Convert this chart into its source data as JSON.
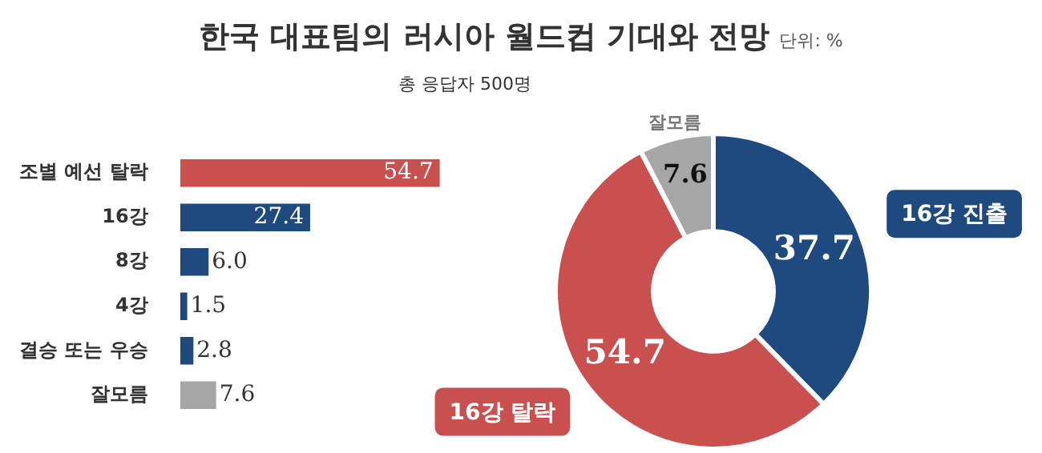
{
  "chart_data": [
    {
      "type": "bar",
      "orientation": "horizontal",
      "title": "한국 대표팀의 러시아 월드컵 기대와 전망",
      "subtitle": "총 응답자 500명",
      "annotations": [
        "단위: %"
      ],
      "categories": [
        "조별 예선 탈락",
        "16강",
        "8강",
        "4강",
        "결승 또는 우승",
        "잘모름"
      ],
      "values": [
        54.7,
        27.4,
        6.0,
        1.5,
        2.8,
        7.6
      ],
      "colors": [
        "#c9504f",
        "#1f4a7f",
        "#1f4a7f",
        "#1f4a7f",
        "#1f4a7f",
        "#a6a6a6"
      ],
      "value_labels": [
        "54.7",
        "27.4",
        "6.0",
        "1.5",
        "2.8",
        "7.6"
      ]
    },
    {
      "type": "donut",
      "categories": [
        "16강 진출",
        "16강 탈락",
        "잘모름"
      ],
      "values": [
        37.7,
        54.7,
        7.6
      ],
      "colors": [
        "#1f4a7f",
        "#c9504f",
        "#a6a6a6"
      ],
      "data_labels": true
    }
  ]
}
